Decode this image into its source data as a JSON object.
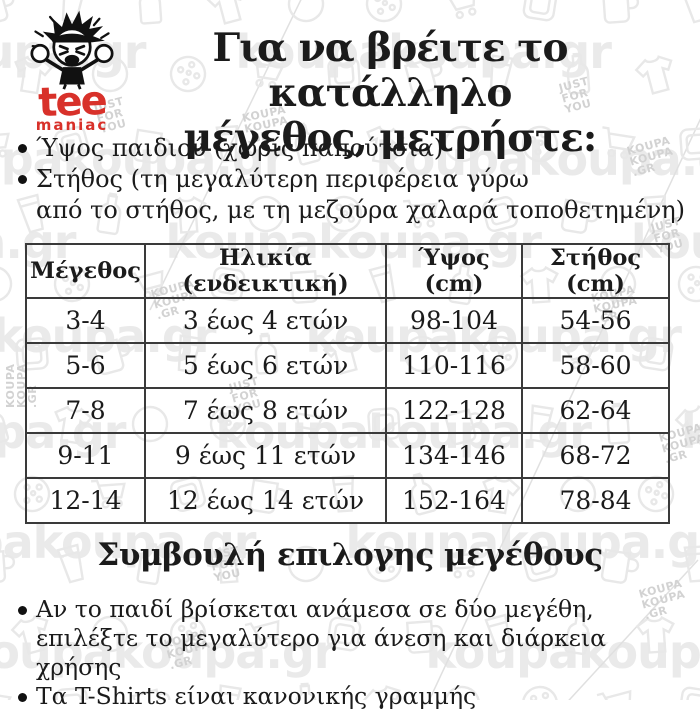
{
  "logo": {
    "brand": "tee",
    "sub": "maniac",
    "accent_color": "#d8312a",
    "mascot": "angry-boy-mascot"
  },
  "title": {
    "line1": "Για να βρέιτε το κατάλληλο",
    "line2": "μέγεθος, μετρήστε:"
  },
  "intro_bullets": {
    "b1": "Ύψος παιδιού (χωρίς παπούτσια)",
    "b2_line1": "Στήθος (τη μεγαλύτερη περιφέρεια γύρω",
    "b2_line2": "από το στήθος, με τη μεζούρα χαλαρά τοποθετημένη)"
  },
  "size_table": {
    "headers": [
      "Μέγεθος",
      "Ηλικία  (ενδεικτική)",
      "Ύψος (cm)",
      "Στήθος (cm)"
    ],
    "rows": [
      [
        "3-4",
        "3 έως 4 ετών",
        "98-104",
        "54-56"
      ],
      [
        "5-6",
        "5 έως 6 ετών",
        "110-116",
        "58-60"
      ],
      [
        "7-8",
        "7 έως 8 ετών",
        "122-128",
        "62-64"
      ],
      [
        "9-11",
        "9 έως 11 ετών",
        "134-146",
        "68-72"
      ],
      [
        "12-14",
        "12 έως 14 ετών",
        "152-164",
        "78-84"
      ]
    ]
  },
  "tip": {
    "heading": "Συμβουλή επιλογης μεγέθους",
    "b1_line1": "Αν το παιδί βρίσκεται ανάμεσα σε δύο μεγέθη,",
    "b1_line2": "επιλέξτε το μεγαλύτερο για άνεση και διάρκεια χρήσης",
    "b2": "Τα T-Shirts είναι κανονικής γραμμής"
  },
  "watermark": {
    "wordmark": "koupakoupa.gr",
    "stamp_just_lines": [
      "JUST",
      "FOR",
      "YOU"
    ],
    "stamp_koupa_lines": [
      "KOUPA",
      "KOUPA",
      ".GR"
    ],
    "icons": [
      "mug-icon",
      "pint-glass-icon",
      "bottle-icon",
      "tshirt-icon",
      "gr-circle-icon",
      "cookie-plate-icon",
      "shopping-cart-icon",
      "coaster-icon"
    ],
    "color_icon": "#e8e8e8",
    "color_stamp": "#d2d2d2",
    "color_wordmark": "#eaeaea",
    "color_line": "#e0e0e0"
  }
}
